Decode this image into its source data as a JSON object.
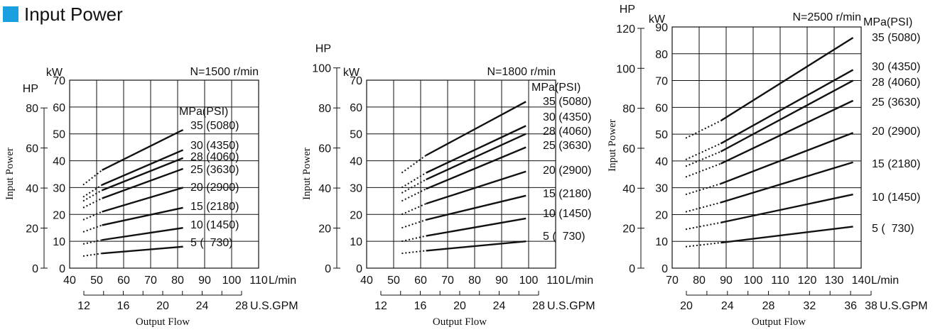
{
  "title": "Input Power",
  "colors": {
    "accent": "#1a9fe0",
    "line": "#111111",
    "grid": "#111111"
  },
  "chart_data": [
    {
      "type": "line",
      "speed_label": "N=1500 r/min",
      "ylabel": "Input Power",
      "xlabel": "Output Flow",
      "kw_unit": "kW",
      "hp_unit": "HP",
      "x_unit": "L/min",
      "gpm_unit": "U.S.GPM",
      "legend_header": "MPa(PSI)",
      "x_ticks": [
        40,
        50,
        60,
        70,
        80,
        90,
        100,
        110
      ],
      "kw_ticks": [
        0,
        10,
        20,
        30,
        40,
        50,
        60,
        70
      ],
      "hp_ticks": [
        0,
        20,
        40,
        60,
        80
      ],
      "gpm_ticks": [
        12,
        16,
        20,
        24,
        28
      ],
      "xlim": [
        40,
        110
      ],
      "kw_lim": [
        0,
        70
      ],
      "dotted_x": [
        45,
        52
      ],
      "series": [
        {
          "name": "35 (5080)",
          "values": [
            31,
            36.5,
            51.5
          ],
          "x": [
            45,
            52,
            82
          ]
        },
        {
          "name": "30 (4350)",
          "values": [
            26.5,
            31,
            44
          ],
          "x": [
            45,
            52,
            82
          ]
        },
        {
          "name": "28 (4060)",
          "values": [
            25,
            29,
            41
          ],
          "x": [
            45,
            52,
            82
          ]
        },
        {
          "name": "25 (3630)",
          "values": [
            22.5,
            26,
            37
          ],
          "x": [
            45,
            52,
            82
          ]
        },
        {
          "name": "20 (2900)",
          "values": [
            18,
            21,
            30
          ],
          "x": [
            45,
            52,
            82
          ]
        },
        {
          "name": "15 (2180)",
          "values": [
            13.5,
            16,
            22.5
          ],
          "x": [
            45,
            52,
            82
          ]
        },
        {
          "name": "10 (1450)",
          "values": [
            9,
            10.5,
            15
          ],
          "x": [
            45,
            52,
            82
          ]
        },
        {
          "name": "5 (  730)",
          "values": [
            4.5,
            5.5,
            8
          ],
          "x": [
            45,
            52,
            82
          ]
        }
      ]
    },
    {
      "type": "line",
      "speed_label": "N=1800 r/min",
      "ylabel": "Input Power",
      "xlabel": "Output Flow",
      "kw_unit": "kW",
      "hp_unit": "HP",
      "x_unit": "L/min",
      "gpm_unit": "U.S.GPM",
      "legend_header": "MPa(PSI)",
      "x_ticks": [
        40,
        50,
        60,
        70,
        80,
        90,
        100,
        110
      ],
      "kw_ticks": [
        0,
        10,
        20,
        30,
        40,
        50,
        60,
        70
      ],
      "hp_ticks": [
        0,
        20,
        40,
        60,
        80,
        100
      ],
      "gpm_ticks": [
        12,
        16,
        20,
        24,
        28
      ],
      "xlim": [
        40,
        110
      ],
      "kw_lim": [
        0,
        70
      ],
      "dotted_x": [
        53,
        62
      ],
      "series": [
        {
          "name": "35 (5080)",
          "values": [
            35.5,
            42,
            62
          ],
          "x": [
            53,
            62,
            99
          ]
        },
        {
          "name": "30 (4350)",
          "values": [
            30,
            35.5,
            53
          ],
          "x": [
            53,
            62,
            99
          ]
        },
        {
          "name": "28 (4060)",
          "values": [
            28,
            33,
            50
          ],
          "x": [
            53,
            62,
            99
          ]
        },
        {
          "name": "25 (3630)",
          "values": [
            25,
            29.5,
            45
          ],
          "x": [
            53,
            62,
            99
          ]
        },
        {
          "name": "20 (2900)",
          "values": [
            20,
            24,
            36
          ],
          "x": [
            53,
            62,
            99
          ]
        },
        {
          "name": "15 (2180)",
          "values": [
            15,
            18,
            27
          ],
          "x": [
            53,
            62,
            99
          ]
        },
        {
          "name": "10 (1450)",
          "values": [
            10,
            12,
            18.5
          ],
          "x": [
            53,
            62,
            99
          ]
        },
        {
          "name": "5 (  730)",
          "values": [
            5.5,
            6.5,
            10
          ],
          "x": [
            53,
            62,
            99
          ]
        }
      ]
    },
    {
      "type": "line",
      "speed_label": "N=2500 r/min",
      "ylabel": "Input Power",
      "xlabel": "Output Flow",
      "kw_unit": "kW",
      "hp_unit": "HP",
      "x_unit": "L/min",
      "gpm_unit": "U.S.GPM",
      "legend_header": "MPa(PSI)",
      "x_ticks": [
        70,
        80,
        90,
        100,
        110,
        120,
        130,
        140
      ],
      "kw_ticks": [
        0,
        10,
        20,
        30,
        40,
        50,
        60,
        70,
        80,
        90
      ],
      "hp_ticks": [
        0,
        20,
        40,
        60,
        80,
        100,
        120
      ],
      "gpm_ticks": [
        20,
        24,
        28,
        32,
        36,
        38
      ],
      "xlim": [
        70,
        140
      ],
      "kw_lim": [
        0,
        90
      ],
      "dotted_x": [
        75,
        88
      ],
      "series": [
        {
          "name": "35 (5080)",
          "values": [
            48.5,
            55,
            86
          ],
          "x": [
            75,
            88,
            137
          ]
        },
        {
          "name": "30 (4350)",
          "values": [
            40.5,
            46.5,
            74
          ],
          "x": [
            75,
            88,
            137
          ]
        },
        {
          "name": "28 (4060)",
          "values": [
            38,
            43.5,
            70
          ],
          "x": [
            75,
            88,
            137
          ]
        },
        {
          "name": "25 (3630)",
          "values": [
            34,
            39,
            62.5
          ],
          "x": [
            75,
            88,
            137
          ]
        },
        {
          "name": "20 (2900)",
          "values": [
            27.5,
            31.5,
            50.5
          ],
          "x": [
            75,
            88,
            137
          ]
        },
        {
          "name": "15 (2180)",
          "values": [
            21,
            24.5,
            39.5
          ],
          "x": [
            75,
            88,
            137
          ]
        },
        {
          "name": "10 (1450)",
          "values": [
            14.5,
            17,
            27.5
          ],
          "x": [
            75,
            88,
            137
          ]
        },
        {
          "name": "5 (  730)",
          "values": [
            8,
            9.5,
            15.5
          ],
          "x": [
            75,
            88,
            137
          ]
        }
      ]
    }
  ]
}
